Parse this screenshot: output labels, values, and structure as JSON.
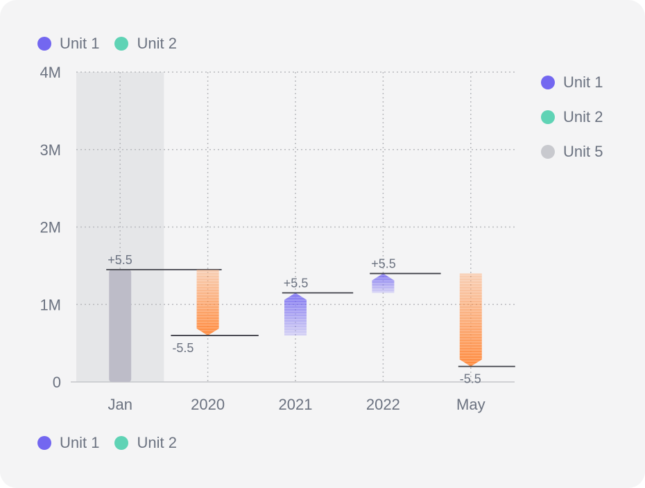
{
  "colors": {
    "unit1": "#7367f0",
    "unit2": "#5fd3b5",
    "unit5": "#c8c9ce",
    "decrease": "#ff8a3d",
    "total_bar": "#bdbcc8",
    "highlight_band": "#e5e6e8"
  },
  "legend_top": [
    {
      "label": "Unit 1",
      "color": "#7367f0"
    },
    {
      "label": "Unit 2",
      "color": "#5fd3b5"
    }
  ],
  "legend_right": [
    {
      "label": "Unit 1",
      "color": "#7367f0"
    },
    {
      "label": "Unit 2",
      "color": "#5fd3b5"
    },
    {
      "label": "Unit 5",
      "color": "#c8c9ce"
    }
  ],
  "legend_bottom": [
    {
      "label": "Unit 1",
      "color": "#7367f0"
    },
    {
      "label": "Unit 2",
      "color": "#5fd3b5"
    }
  ],
  "chart_data": {
    "type": "bar",
    "subtype": "waterfall",
    "categories": [
      "Jan",
      "2020",
      "2021",
      "2022",
      "May"
    ],
    "y_ticks": [
      "0",
      "1M",
      "2M",
      "3M",
      "4M"
    ],
    "ylim": [
      0,
      4000000
    ],
    "grid": true,
    "highlighted_category": "Jan",
    "bars": [
      {
        "category": "Jan",
        "kind": "total",
        "start": 0,
        "end": 1450000,
        "label": "+5.5"
      },
      {
        "category": "2020",
        "kind": "decrease",
        "start": 1450000,
        "end": 600000,
        "label": "-5.5"
      },
      {
        "category": "2021",
        "kind": "increase",
        "start": 600000,
        "end": 1150000,
        "label": "+5.5"
      },
      {
        "category": "2022",
        "kind": "increase",
        "start": 1150000,
        "end": 1400000,
        "label": "+5.5"
      },
      {
        "category": "May",
        "kind": "decrease",
        "start": 1400000,
        "end": 200000,
        "label": "-5.5"
      }
    ]
  }
}
